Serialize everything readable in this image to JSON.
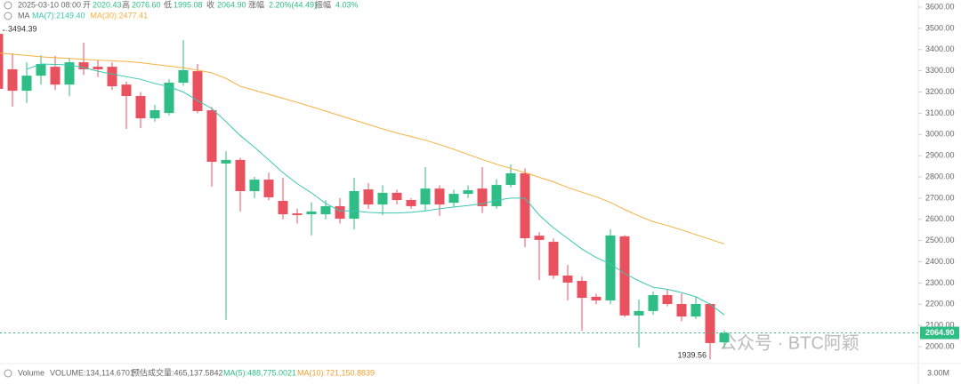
{
  "header": {
    "datetime": "2025-03-10 08:00",
    "open_label": "开",
    "open": "2020.43",
    "high_label": "高",
    "high": "2076.60",
    "low_label": "低",
    "low": "1995.08",
    "close_label": "收",
    "close": "2064.90",
    "change_label": "涨幅",
    "change": "2.20%(44.49)",
    "amplitude_label": "振幅",
    "amplitude": "4.03%"
  },
  "volume_legend": {
    "title": "Volume",
    "volume": "VOLUME:134,114.6701",
    "estimate": "预估成交量:465,137.5842",
    "ma5": "MA(5):488,775.0021",
    "ma10": "MA(10):721,150.8839",
    "axis_label": "3.00M"
  },
  "watermark": "公众号 · BTC阿颖",
  "chart_data": {
    "type": "candlestick",
    "ma_label": "MA",
    "up_color": "#2ebd85",
    "down_color": "#e9515f",
    "open": [
      3474,
      3307,
      3206,
      3277,
      3319,
      3235,
      3340,
      3319,
      3319,
      3235,
      3181,
      3076,
      3101,
      3244,
      3298,
      3114,
      2863,
      2880,
      2733,
      2787,
      2687,
      2628,
      2624,
      2624,
      2662,
      2603,
      2741,
      2670,
      2725,
      2691,
      2670,
      2745,
      2678,
      2720,
      2745,
      2662,
      2762,
      2817,
      2523,
      2494,
      2335,
      2310,
      2235,
      2218,
      2520,
      2147,
      2168,
      2243,
      2201,
      2142,
      2201,
      2020.43
    ],
    "high": [
      3494.39,
      3382,
      3340,
      3374,
      3370,
      3360,
      3432,
      3350,
      3340,
      3250,
      3200,
      3140,
      3260,
      3445,
      3332,
      3130,
      2921,
      2890,
      2800,
      2820,
      2796,
      2650,
      2680,
      2690,
      2700,
      2796,
      2770,
      2760,
      2740,
      2700,
      2846,
      2760,
      2740,
      2760,
      2846,
      2790,
      2859,
      2840,
      2540,
      2510,
      2385,
      2330,
      2250,
      2553,
      2525,
      2222,
      2260,
      2272,
      2251,
      2235,
      2205,
      2076.6
    ],
    "low": [
      3200,
      3131,
      3148,
      3235,
      3210,
      3180,
      3280,
      3270,
      3210,
      3026,
      3030,
      3060,
      3090,
      3230,
      3100,
      2754,
      2126,
      2637,
      2700,
      2690,
      2600,
      2580,
      2524,
      2600,
      2580,
      2553,
      2650,
      2620,
      2670,
      2650,
      2640,
      2616,
      2660,
      2700,
      2630,
      2650,
      2750,
      2469,
      2314,
      2320,
      2218,
      2075,
      2200,
      2200,
      2140,
      1996,
      2150,
      2190,
      2120,
      2130,
      1939.56,
      1995.08
    ],
    "close": [
      3215,
      3206,
      3277,
      3332,
      3235,
      3340,
      3307,
      3307,
      3227,
      3181,
      3076,
      3114,
      3244,
      3303,
      3110,
      2871,
      2880,
      2733,
      2787,
      2704,
      2624,
      2620,
      2637,
      2662,
      2603,
      2733,
      2670,
      2725,
      2691,
      2662,
      2745,
      2670,
      2720,
      2737,
      2662,
      2762,
      2817,
      2511,
      2503,
      2335,
      2302,
      2230,
      2218,
      2524,
      2147,
      2168,
      2243,
      2201,
      2142,
      2201,
      2017,
      2064.9
    ],
    "series": [
      {
        "name": "MA(7):2149.40",
        "color": "#3cc7b0",
        "values": [
          null,
          null,
          3307,
          3332,
          3330,
          3328,
          3315,
          3298,
          3285,
          3272,
          3260,
          3240,
          3225,
          3200,
          3160,
          3122,
          3060,
          2995,
          2940,
          2880,
          2820,
          2768,
          2725,
          2675,
          2640,
          2640,
          2633,
          2630,
          2630,
          2633,
          2640,
          2650,
          2658,
          2665,
          2674,
          2690,
          2700,
          2700,
          2620,
          2560,
          2510,
          2460,
          2420,
          2390,
          2345,
          2310,
          2280,
          2270,
          2255,
          2235,
          2200,
          2149.4
        ]
      },
      {
        "name": "MA(30):2477.41",
        "color": "#f5b041",
        "values": [
          3384,
          3378,
          3372,
          3366,
          3362,
          3358,
          3354,
          3350,
          3347,
          3344,
          3338,
          3330,
          3322,
          3314,
          3303,
          3290,
          3264,
          3227,
          3208,
          3189,
          3170,
          3151,
          3131,
          3110,
          3089,
          3068,
          3047,
          3026,
          3007,
          2990,
          2973,
          2952,
          2930,
          2906,
          2882,
          2860,
          2840,
          2820,
          2798,
          2777,
          2750,
          2728,
          2706,
          2680,
          2646,
          2616,
          2589,
          2571,
          2550,
          2528,
          2506,
          2484
        ]
      }
    ],
    "high_marker": "3494.39",
    "low_marker": "1939.56",
    "last_price": 2064.9,
    "last_price_label": "2064.90",
    "ylim": [
      2000,
      3600
    ],
    "yticks": [
      {
        "value": 2000,
        "label": "2000.00"
      },
      {
        "value": 2100,
        "label": "2100.00"
      },
      {
        "value": 2200,
        "label": "2200.00"
      },
      {
        "value": 2300,
        "label": "2300.00"
      },
      {
        "value": 2400,
        "label": "2400.00"
      },
      {
        "value": 2500,
        "label": "2500.00"
      },
      {
        "value": 2600,
        "label": "2600.00"
      },
      {
        "value": 2700,
        "label": "2700.00"
      },
      {
        "value": 2800,
        "label": "2800.00"
      },
      {
        "value": 2900,
        "label": "2900.00"
      },
      {
        "value": 3000,
        "label": "3000.00"
      },
      {
        "value": 3100,
        "label": "3100.00"
      },
      {
        "value": 3200,
        "label": "3200.00"
      },
      {
        "value": 3300,
        "label": "3300.00"
      },
      {
        "value": 3400,
        "label": "3400.00"
      },
      {
        "value": 3500,
        "label": "3500.00"
      },
      {
        "value": 3600,
        "label": "3600.00"
      }
    ]
  }
}
